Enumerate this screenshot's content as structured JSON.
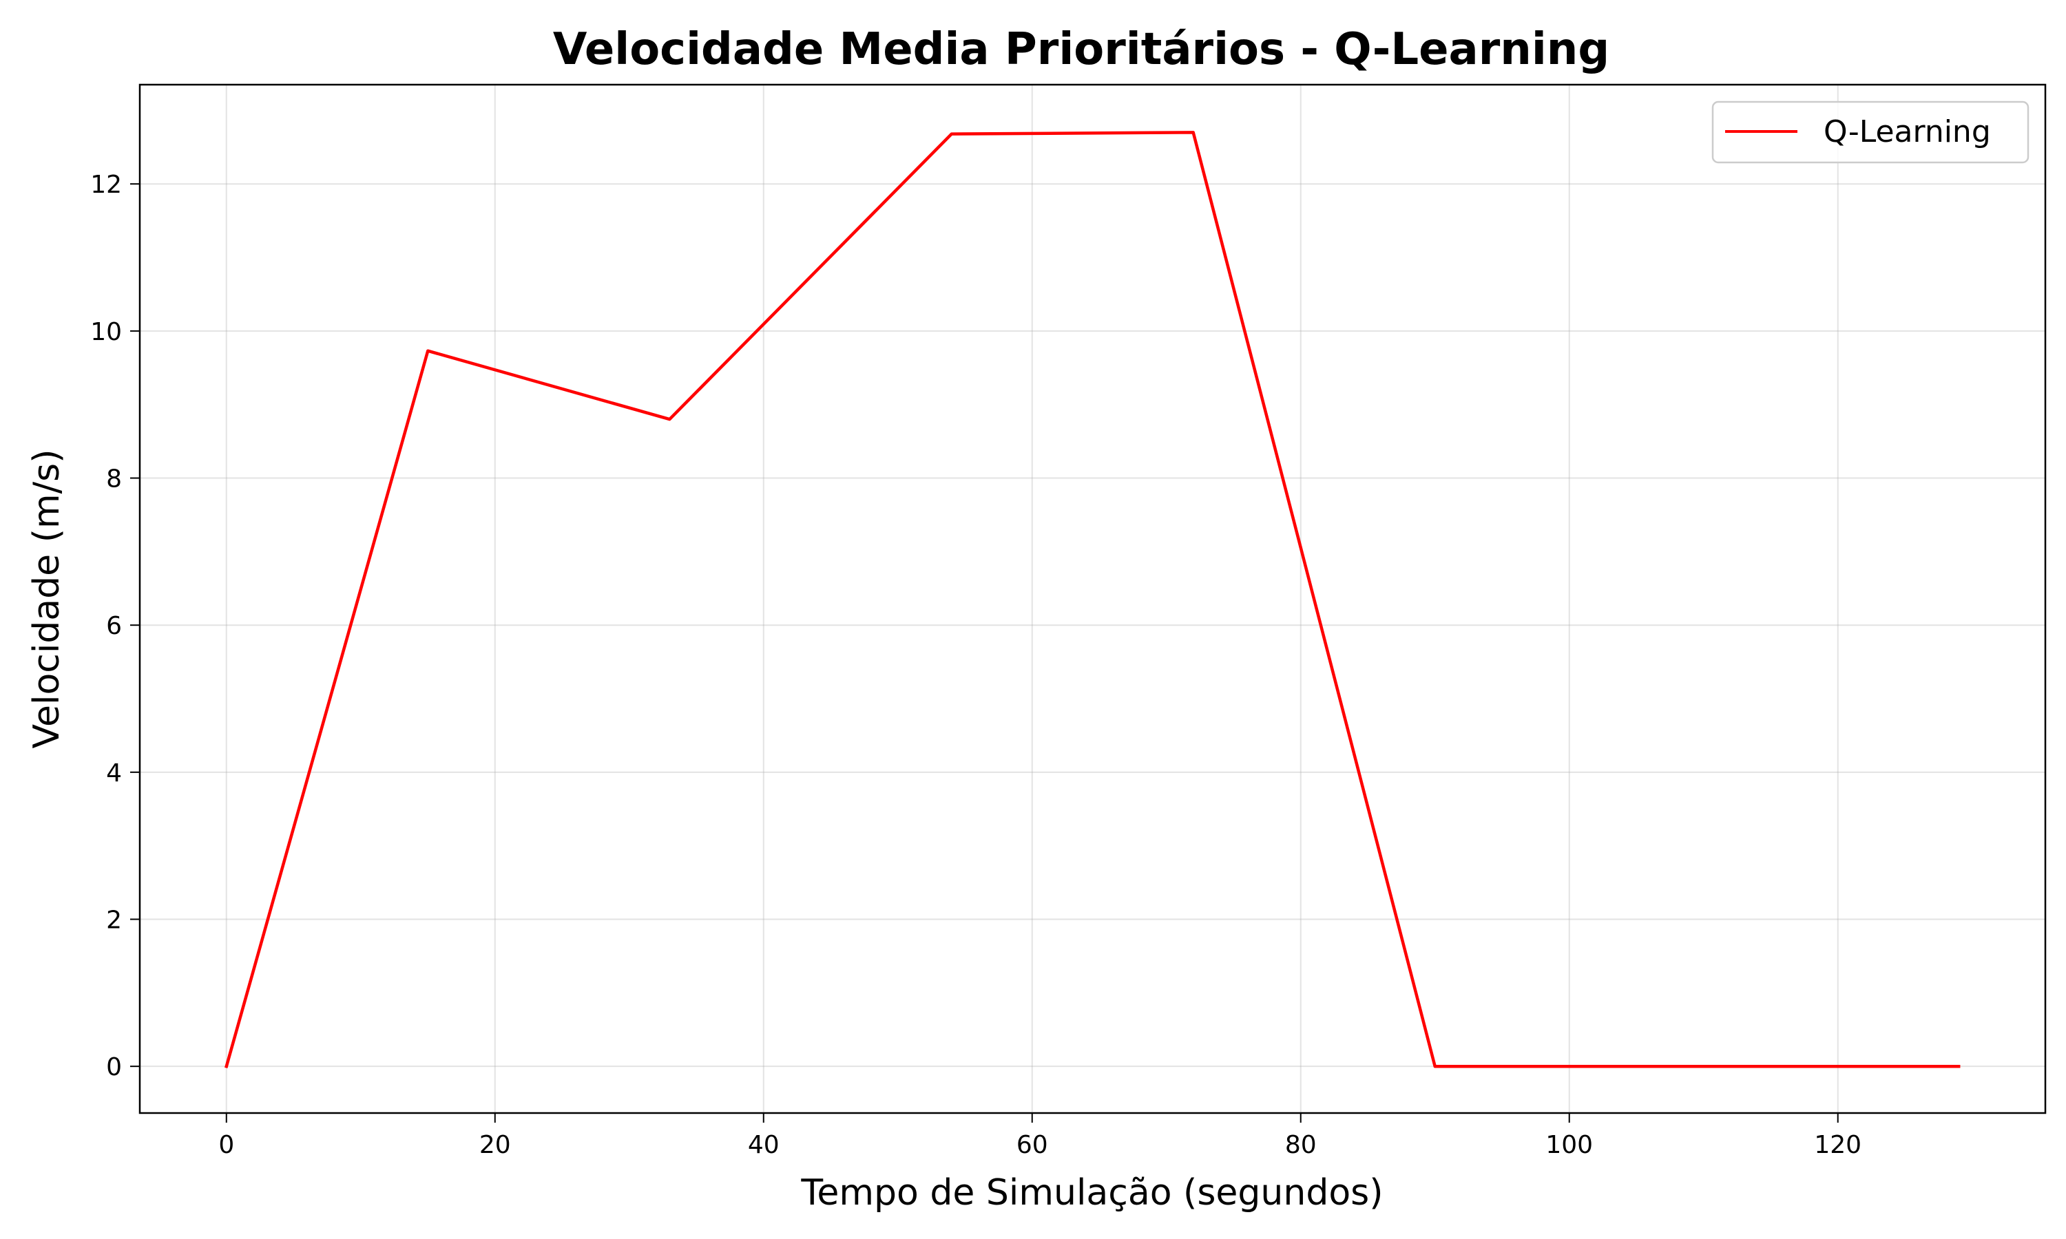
{
  "chart_data": {
    "type": "line",
    "title": "Velocidade Media Prioritários - Q-Learning",
    "xlabel": "Tempo de Simulação (segundos)",
    "ylabel": "Velocidade (m/s)",
    "xlim": [
      -6.45,
      135.45
    ],
    "ylim": [
      -0.635,
      13.35
    ],
    "xticks": [
      0,
      20,
      40,
      60,
      80,
      100,
      120
    ],
    "yticks": [
      0,
      2,
      4,
      6,
      8,
      10,
      12
    ],
    "grid": true,
    "legend_position": "top-right",
    "series": [
      {
        "name": "Q-Learning",
        "color": "#ff0000",
        "x": [
          0,
          15,
          33,
          54,
          72,
          90,
          129
        ],
        "y": [
          0,
          9.73,
          8.8,
          12.68,
          12.7,
          0,
          0
        ]
      }
    ]
  }
}
